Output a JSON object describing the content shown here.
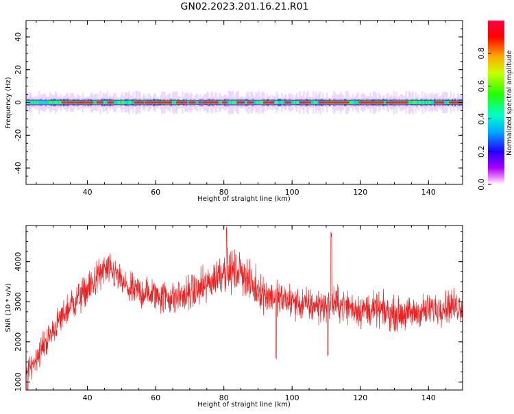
{
  "title": "GN02.2023.201.16.21.R01",
  "colors": {
    "snr_line": "#ee2222",
    "background": "#ffffff",
    "axis": "#000000"
  },
  "chart_data": [
    {
      "type": "heatmap",
      "xlabel": "Height of straight line (km)",
      "ylabel": "Frequency (Hz)",
      "xlim": [
        22,
        150
      ],
      "ylim": [
        -50,
        50
      ],
      "xticks": [
        40,
        60,
        80,
        100,
        120,
        140
      ],
      "yticks": [
        -40,
        -20,
        0,
        20,
        40
      ],
      "description_values": {
        "center_frequency_hz": 0,
        "core_half_width_hz": 1.5,
        "spread_half_width_hz": 4
      },
      "colorbar": {
        "label": "Normalized spectral amplitude",
        "ticks": [
          0.0,
          0.2,
          0.4,
          0.6,
          0.8
        ],
        "range": [
          0,
          1
        ],
        "colormap": [
          "#ffffff",
          "#ff00ff",
          "#0000ff",
          "#00ffff",
          "#00ff00",
          "#ffff00",
          "#ff0000"
        ]
      }
    },
    {
      "type": "line",
      "xlabel": "Height of straight line (km)",
      "ylabel": "SNR (10 * v/v)",
      "xlim": [
        22,
        150
      ],
      "ylim": [
        800,
        4900
      ],
      "xticks": [
        40,
        60,
        80,
        100,
        120,
        140
      ],
      "yticks": [
        1000,
        2000,
        3000,
        4000
      ],
      "series": [
        {
          "x": [
            22,
            25,
            30,
            35,
            40,
            45,
            48,
            52,
            58,
            65,
            70,
            75,
            80,
            82,
            85,
            88,
            92,
            95,
            100,
            105,
            110,
            111,
            115,
            120,
            125,
            130,
            135,
            140,
            145,
            150
          ],
          "y": [
            1200,
            1600,
            2300,
            2900,
            3300,
            3800,
            3700,
            3300,
            3200,
            3100,
            3200,
            3400,
            3800,
            3700,
            3800,
            3400,
            3200,
            3100,
            3000,
            2900,
            2900,
            3000,
            2900,
            2800,
            2800,
            2700,
            2700,
            2800,
            2900,
            2900
          ],
          "noise": [
            250,
            300,
            320,
            350,
            380,
            380,
            350,
            350,
            380,
            380,
            400,
            420,
            450,
            450,
            450,
            420,
            400,
            400,
            380,
            380,
            380,
            380,
            380,
            380,
            370,
            360,
            360,
            360,
            370,
            380
          ]
        }
      ],
      "spikes": [
        {
          "x": 80.8,
          "y": 4900
        },
        {
          "x": 111.5,
          "y": 4750
        },
        {
          "x": 95.3,
          "y": 1700
        },
        {
          "x": 110.5,
          "y": 1750
        },
        {
          "x": 22.5,
          "y": 850
        }
      ]
    }
  ]
}
